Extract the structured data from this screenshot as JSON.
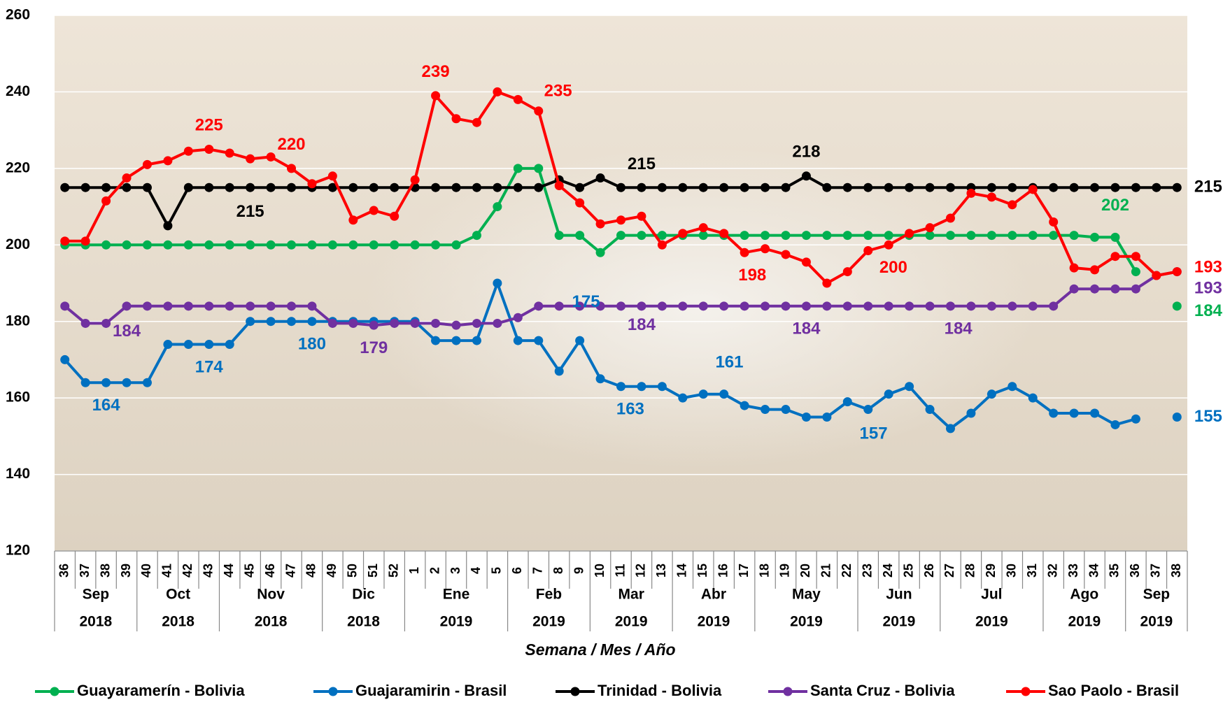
{
  "chart_data": {
    "type": "line",
    "x_title": "Semana / Mes / Año",
    "categories": [
      "36",
      "37",
      "38",
      "39",
      "40",
      "41",
      "42",
      "43",
      "44",
      "45",
      "46",
      "47",
      "48",
      "49",
      "50",
      "51",
      "52",
      "1",
      "2",
      "3",
      "4",
      "5",
      "6",
      "7",
      "8",
      "9",
      "10",
      "11",
      "12",
      "13",
      "14",
      "15",
      "16",
      "17",
      "18",
      "19",
      "20",
      "21",
      "22",
      "23",
      "24",
      "25",
      "26",
      "27",
      "28",
      "29",
      "30",
      "31",
      "32",
      "33",
      "34",
      "35",
      "36",
      "37",
      "38"
    ],
    "months": [
      "Sep",
      "Sep",
      "Sep",
      "Sep",
      "Oct",
      "Oct",
      "Oct",
      "Oct",
      "Nov",
      "Nov",
      "Nov",
      "Nov",
      "Nov",
      "Dic",
      "Dic",
      "Dic",
      "Dic",
      "Ene",
      "Ene",
      "Ene",
      "Ene",
      "Ene",
      "Feb",
      "Feb",
      "Feb",
      "Feb",
      "Mar",
      "Mar",
      "Mar",
      "Mar",
      "Abr",
      "Abr",
      "Abr",
      "Abr",
      "May",
      "May",
      "May",
      "May",
      "May",
      "Jun",
      "Jun",
      "Jun",
      "Jun",
      "Jul",
      "Jul",
      "Jul",
      "Jul",
      "Jul",
      "Ago",
      "Ago",
      "Ago",
      "Ago",
      "Sep",
      "Sep",
      "Sep"
    ],
    "years": [
      "2018",
      "2018",
      "2018",
      "2018",
      "2018",
      "2018",
      "2018",
      "2018",
      "2018",
      "2018",
      "2018",
      "2018",
      "2018",
      "2018",
      "2018",
      "2018",
      "2018",
      "2019",
      "2019",
      "2019",
      "2019",
      "2019",
      "2019",
      "2019",
      "2019",
      "2019",
      "2019",
      "2019",
      "2019",
      "2019",
      "2019",
      "2019",
      "2019",
      "2019",
      "2019",
      "2019",
      "2019",
      "2019",
      "2019",
      "2019",
      "2019",
      "2019",
      "2019",
      "2019",
      "2019",
      "2019",
      "2019",
      "2019",
      "2019",
      "2019",
      "2019",
      "2019",
      "2019",
      "2019",
      "2019"
    ],
    "ylim": [
      120,
      260
    ],
    "yticks": [
      120,
      140,
      160,
      180,
      200,
      220,
      240,
      260
    ],
    "grid": true,
    "legend": "bottom",
    "series": [
      {
        "name": "Guayaramerín - Bolivia",
        "color": "#00b050",
        "values": [
          200,
          200,
          200,
          200,
          200,
          200,
          200,
          200,
          200,
          200,
          200,
          200,
          200,
          200,
          200,
          200,
          200,
          200,
          200,
          200,
          202.5,
          210,
          220,
          220,
          202.5,
          202.5,
          198,
          202.5,
          202.5,
          202.5,
          202.5,
          202.5,
          202.5,
          202.5,
          202.5,
          202.5,
          202.5,
          202.5,
          202.5,
          202.5,
          202.5,
          202.5,
          202.5,
          202.5,
          202.5,
          202.5,
          202.5,
          202.5,
          202.5,
          202.5,
          202,
          202,
          193,
          null,
          184
        ],
        "value_labels": [
          null,
          null,
          null,
          null,
          null,
          null,
          null,
          null,
          null,
          null,
          null,
          null,
          null,
          null,
          null,
          null,
          null,
          null,
          null,
          null,
          null,
          null,
          null,
          null,
          null,
          null,
          null,
          null,
          null,
          null,
          null,
          null,
          null,
          null,
          null,
          null,
          null,
          null,
          null,
          null,
          null,
          null,
          null,
          null,
          null,
          null,
          null,
          null,
          null,
          null,
          null,
          "202",
          null,
          null,
          "184"
        ]
      },
      {
        "name": "Guajaramirin - Brasil",
        "color": "#0070c0",
        "values": [
          170,
          164,
          164,
          164,
          164,
          174,
          174,
          174,
          174,
          180,
          180,
          180,
          180,
          180,
          180,
          180,
          180,
          180,
          175,
          175,
          175,
          190,
          175,
          175,
          167,
          175,
          165,
          163,
          163,
          163,
          160,
          161,
          161,
          158,
          157,
          157,
          155,
          155,
          159,
          157,
          161,
          163,
          157,
          152,
          156,
          161,
          163,
          160,
          156,
          156,
          156,
          153,
          154.5,
          null,
          155
        ],
        "value_labels": [
          null,
          null,
          "164",
          null,
          null,
          null,
          null,
          "174",
          null,
          null,
          null,
          null,
          "180",
          null,
          null,
          null,
          null,
          null,
          null,
          null,
          null,
          null,
          null,
          null,
          null,
          "175",
          null,
          "163",
          null,
          null,
          null,
          null,
          "161",
          null,
          null,
          null,
          null,
          null,
          null,
          "157",
          null,
          null,
          null,
          null,
          null,
          null,
          null,
          null,
          null,
          null,
          null,
          null,
          null,
          null,
          "155"
        ]
      },
      {
        "name": "Trinidad - Bolivia",
        "color": "#000000",
        "values": [
          215,
          215,
          215,
          215,
          215,
          205,
          215,
          215,
          215,
          215,
          215,
          215,
          215,
          215,
          215,
          215,
          215,
          215,
          215,
          215,
          215,
          215,
          215,
          215,
          217,
          215,
          217.5,
          215,
          215,
          215,
          215,
          215,
          215,
          215,
          215,
          215,
          218,
          215,
          215,
          215,
          215,
          215,
          215,
          215,
          215,
          215,
          215,
          215,
          215,
          215,
          215,
          215,
          215,
          215,
          215
        ],
        "value_labels": [
          null,
          null,
          null,
          null,
          null,
          null,
          null,
          null,
          null,
          "215",
          null,
          null,
          null,
          null,
          null,
          null,
          null,
          null,
          null,
          null,
          null,
          null,
          null,
          null,
          null,
          null,
          null,
          null,
          "215",
          null,
          null,
          null,
          null,
          null,
          null,
          null,
          "218",
          null,
          null,
          null,
          null,
          null,
          null,
          null,
          null,
          null,
          null,
          null,
          null,
          null,
          null,
          null,
          null,
          null,
          "215"
        ]
      },
      {
        "name": "Santa Cruz - Bolivia",
        "color": "#7030a0",
        "values": [
          184,
          179.5,
          179.5,
          184,
          184,
          184,
          184,
          184,
          184,
          184,
          184,
          184,
          184,
          179.5,
          179.5,
          179,
          179.5,
          179.5,
          179.5,
          179,
          179.5,
          179.5,
          181,
          184,
          184,
          184,
          184,
          184,
          184,
          184,
          184,
          184,
          184,
          184,
          184,
          184,
          184,
          184,
          184,
          184,
          184,
          184,
          184,
          184,
          184,
          184,
          184,
          184,
          184,
          188.5,
          188.5,
          188.5,
          188.5,
          192,
          193
        ],
        "value_labels": [
          null,
          null,
          null,
          "184",
          null,
          null,
          null,
          null,
          null,
          null,
          null,
          null,
          null,
          null,
          null,
          "179",
          null,
          null,
          null,
          null,
          null,
          null,
          null,
          null,
          null,
          null,
          null,
          null,
          "184",
          null,
          null,
          null,
          null,
          null,
          null,
          null,
          "184",
          null,
          null,
          null,
          null,
          null,
          null,
          "184",
          null,
          null,
          null,
          null,
          null,
          null,
          null,
          null,
          null,
          null,
          "193"
        ]
      },
      {
        "name": "Sao Paolo - Brasil",
        "color": "#ff0000",
        "values": [
          201,
          201,
          211.5,
          217.5,
          221,
          222,
          224.5,
          225,
          224,
          222.5,
          223,
          220,
          216,
          218,
          206.5,
          209,
          207.5,
          217,
          239,
          233,
          232,
          240,
          238,
          235,
          215.5,
          211,
          205.5,
          206.5,
          207.5,
          200,
          203,
          204.5,
          203,
          198,
          199,
          197.5,
          195.5,
          190,
          193,
          198.5,
          200,
          203,
          204.5,
          207,
          213.5,
          212.5,
          210.5,
          214.5,
          206,
          194,
          193.5,
          197,
          197,
          192,
          193
        ],
        "value_labels": [
          null,
          null,
          null,
          null,
          null,
          null,
          null,
          "225",
          null,
          null,
          null,
          "220",
          null,
          null,
          null,
          null,
          null,
          null,
          "239",
          null,
          null,
          null,
          null,
          "235",
          null,
          null,
          null,
          null,
          null,
          null,
          null,
          null,
          null,
          "198",
          null,
          null,
          null,
          null,
          null,
          null,
          "200",
          null,
          null,
          null,
          null,
          null,
          null,
          null,
          null,
          null,
          null,
          null,
          null,
          null,
          "193"
        ]
      }
    ]
  }
}
